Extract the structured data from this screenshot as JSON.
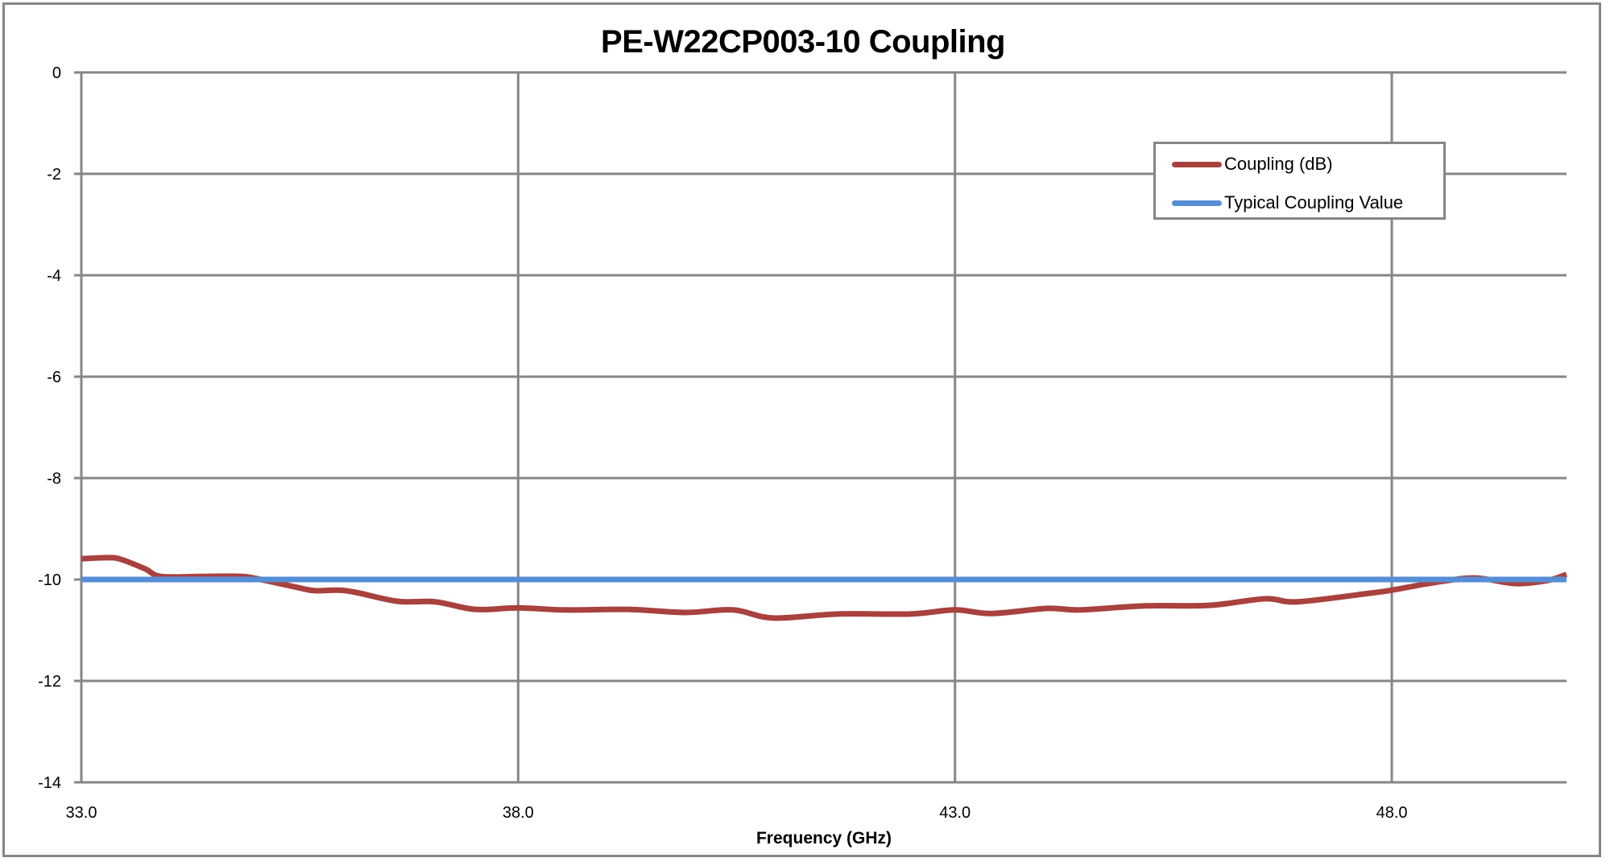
{
  "chart_data": {
    "type": "line",
    "title": "PE-W22CP003-10 Coupling",
    "xlabel": "Frequency (GHz)",
    "ylabel": "",
    "xlim": [
      33.0,
      50.0
    ],
    "ylim": [
      -14,
      0
    ],
    "x_ticks": [
      "33.0",
      "38.0",
      "43.0",
      "48.0"
    ],
    "x_tick_values": [
      33.0,
      38.0,
      43.0,
      48.0
    ],
    "y_ticks": [
      "0",
      "-2",
      "-4",
      "-6",
      "-8",
      "-10",
      "-12",
      "-14"
    ],
    "y_tick_values": [
      0,
      -2,
      -4,
      -6,
      -8,
      -10,
      -12,
      -14
    ],
    "grid": true,
    "legend_position": "upper-right-inside",
    "series": [
      {
        "name": "Coupling (dB)",
        "color": "#A9413F",
        "x": [
          33.0,
          33.3,
          33.45,
          33.73,
          33.91,
          34.37,
          34.84,
          35.11,
          35.48,
          35.67,
          35.92,
          36.13,
          36.62,
          37.05,
          37.51,
          38.0,
          38.53,
          39.26,
          39.91,
          40.46,
          40.92,
          41.66,
          42.49,
          43.0,
          43.42,
          44.06,
          44.43,
          45.17,
          45.91,
          46.55,
          46.92,
          47.75,
          48.0,
          48.49,
          48.95,
          49.41,
          49.78,
          50.0
        ],
        "values": [
          -9.59,
          -9.57,
          -9.6,
          -9.79,
          -9.94,
          -9.94,
          -9.94,
          -10.02,
          -10.16,
          -10.22,
          -10.21,
          -10.25,
          -10.43,
          -10.44,
          -10.59,
          -10.56,
          -10.6,
          -10.59,
          -10.65,
          -10.6,
          -10.76,
          -10.68,
          -10.68,
          -10.6,
          -10.67,
          -10.57,
          -10.6,
          -10.52,
          -10.51,
          -10.38,
          -10.44,
          -10.27,
          -10.21,
          -10.06,
          -9.97,
          -10.08,
          -10.02,
          -9.9
        ]
      },
      {
        "name": "Typical Coupling Value",
        "color": "#558ED5",
        "x": [
          33.0,
          50.0
        ],
        "values": [
          -10,
          -10
        ]
      }
    ]
  },
  "legend": {
    "items": [
      {
        "label": "Coupling (dB)",
        "color": "#A9413F"
      },
      {
        "label": "Typical Coupling Value",
        "color": "#558ED5"
      }
    ]
  },
  "style": {
    "grid_color": "#868686",
    "border_color": "#868686"
  }
}
